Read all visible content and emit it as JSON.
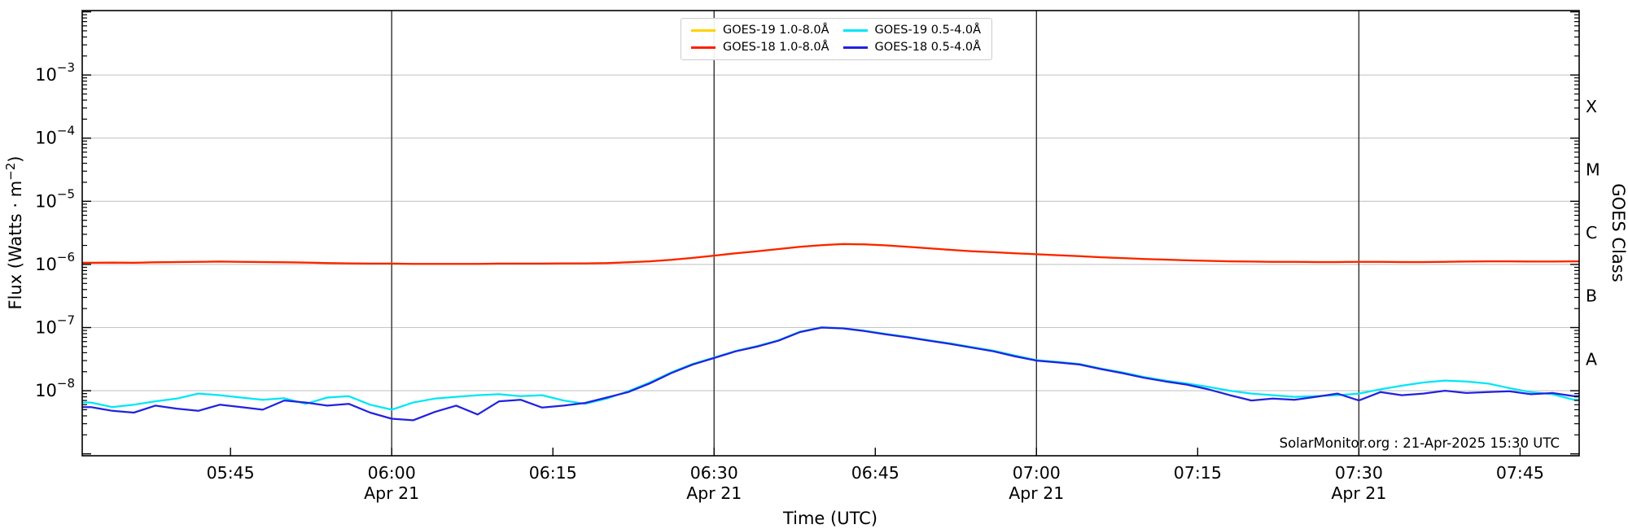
{
  "page": {
    "background": "#ffffff"
  },
  "axes": {
    "xlabel": "Time (UTC)",
    "ylabel_left_pre": "Flux (Watts · m",
    "ylabel_left_sup": "−2",
    "ylabel_left_post": ")",
    "ylabel_right": "GOES Class"
  },
  "annotation": {
    "text": "SolarMonitor.org : 21-Apr-2025 15:30 UTC"
  },
  "legend": {
    "items": [
      {
        "id": "goes19-long",
        "label": "GOES-19 1.0-8.0Å",
        "color": "#ffd200"
      },
      {
        "id": "goes18-long",
        "label": "GOES-18 1.0-8.0Å",
        "color": "#ff2000"
      },
      {
        "id": "goes19-short",
        "label": "GOES-19 0.5-4.0Å",
        "color": "#00e6f6"
      },
      {
        "id": "goes18-short",
        "label": "GOES-18 0.5-4.0Å",
        "color": "#2222e0"
      }
    ]
  },
  "chart_data": {
    "type": "line",
    "xlabel": "Time (UTC)",
    "ylabel": "Flux (Watts · m−2)",
    "ylabel_right": "GOES Class",
    "x_unit": "minutes after 05:30 UTC, 21-Apr-2025",
    "x_min": 1.2,
    "x_max": 140.5,
    "y_log_min": -9.03,
    "y_log_max": -1.98,
    "y_tick_exps": [
      -3,
      -4,
      -5,
      -6,
      -7,
      -8
    ],
    "grid_on": true,
    "x_ticks": [
      {
        "minutes": 15,
        "label": "05:45"
      },
      {
        "minutes": 30,
        "label": "06:00",
        "date": "Apr 21",
        "line": true
      },
      {
        "minutes": 45,
        "label": "06:15"
      },
      {
        "minutes": 60,
        "label": "06:30",
        "date": "Apr 21",
        "line": true
      },
      {
        "minutes": 75,
        "label": "06:45"
      },
      {
        "minutes": 90,
        "label": "07:00",
        "date": "Apr 21",
        "line": true
      },
      {
        "minutes": 105,
        "label": "07:15"
      },
      {
        "minutes": 120,
        "label": "07:30",
        "date": "Apr 21",
        "line": true
      },
      {
        "minutes": 135,
        "label": "07:45"
      }
    ],
    "goes_classes": [
      {
        "label": "X",
        "center_exp": -3.5
      },
      {
        "label": "M",
        "center_exp": -4.5
      },
      {
        "label": "C",
        "center_exp": -5.5
      },
      {
        "label": "B",
        "center_exp": -6.5
      },
      {
        "label": "A",
        "center_exp": -7.5
      }
    ],
    "sample_start_minute": 2,
    "sample_step_minutes": 2,
    "series": [
      {
        "id": "goes19-long",
        "name": "GOES-19 1.0-8.0Å",
        "color": "#ffd200",
        "flux_scale": 1e-06,
        "values": [
          1.06,
          1.07,
          1.06,
          1.08,
          1.09,
          1.1,
          1.11,
          1.1,
          1.09,
          1.08,
          1.07,
          1.05,
          1.04,
          1.03,
          1.03,
          1.02,
          1.02,
          1.02,
          1.02,
          1.03,
          1.03,
          1.03,
          1.04,
          1.04,
          1.05,
          1.08,
          1.12,
          1.18,
          1.27,
          1.38,
          1.5,
          1.62,
          1.75,
          1.9,
          2.02,
          2.1,
          2.08,
          2.0,
          1.9,
          1.8,
          1.7,
          1.62,
          1.56,
          1.5,
          1.45,
          1.4,
          1.35,
          1.3,
          1.26,
          1.22,
          1.19,
          1.16,
          1.14,
          1.12,
          1.11,
          1.1,
          1.1,
          1.09,
          1.09,
          1.1,
          1.1,
          1.09,
          1.09,
          1.1,
          1.11,
          1.12,
          1.12,
          1.11,
          1.11,
          1.12
        ]
      },
      {
        "id": "goes18-long",
        "name": "GOES-18 1.0-8.0Å",
        "color": "#ff2000",
        "flux_scale": 1e-06,
        "values": [
          1.06,
          1.07,
          1.06,
          1.08,
          1.09,
          1.1,
          1.11,
          1.1,
          1.09,
          1.08,
          1.07,
          1.05,
          1.04,
          1.03,
          1.03,
          1.02,
          1.02,
          1.02,
          1.02,
          1.03,
          1.03,
          1.03,
          1.04,
          1.04,
          1.05,
          1.08,
          1.12,
          1.18,
          1.27,
          1.38,
          1.5,
          1.62,
          1.75,
          1.9,
          2.02,
          2.1,
          2.08,
          2.0,
          1.9,
          1.8,
          1.7,
          1.62,
          1.56,
          1.5,
          1.45,
          1.4,
          1.35,
          1.3,
          1.26,
          1.22,
          1.19,
          1.16,
          1.14,
          1.12,
          1.11,
          1.1,
          1.1,
          1.09,
          1.09,
          1.1,
          1.1,
          1.09,
          1.09,
          1.1,
          1.11,
          1.12,
          1.12,
          1.11,
          1.11,
          1.12
        ]
      },
      {
        "id": "goes19-short",
        "name": "GOES-19 0.5-4.0Å",
        "color": "#00e6f6",
        "flux_scale": 1e-09,
        "values": [
          6.5,
          5.5,
          6.0,
          6.8,
          7.5,
          9.0,
          8.5,
          7.8,
          7.2,
          7.6,
          6.2,
          7.8,
          8.2,
          6.0,
          5.0,
          6.5,
          7.5,
          8.0,
          8.5,
          8.8,
          8.2,
          8.5,
          7.0,
          6.2,
          7.5,
          9.8,
          13.5,
          19.5,
          26.5,
          33.5,
          42.5,
          51,
          63,
          86,
          101,
          98,
          89,
          79,
          71,
          63,
          56,
          49,
          43,
          36,
          30.5,
          28.5,
          26.5,
          22.5,
          19.5,
          16.5,
          14.5,
          13.0,
          11.5,
          10.0,
          9.0,
          8.5,
          8.0,
          8.2,
          8.5,
          9.0,
          10.5,
          12.0,
          13.5,
          14.5,
          14.0,
          13.0,
          11.0,
          9.5,
          8.8,
          7.2
        ]
      },
      {
        "id": "goes18-short",
        "name": "GOES-18 0.5-4.0Å",
        "color": "#2222e0",
        "flux_scale": 1e-09,
        "values": [
          5.5,
          4.8,
          4.5,
          5.8,
          5.2,
          4.8,
          6.0,
          5.5,
          5.0,
          7.0,
          6.5,
          5.8,
          6.2,
          4.5,
          3.6,
          3.4,
          4.6,
          5.8,
          4.2,
          6.8,
          7.2,
          5.4,
          5.8,
          6.4,
          7.8,
          9.5,
          13,
          19,
          26,
          33,
          42,
          50,
          62,
          85,
          100,
          97,
          88,
          78,
          70,
          62,
          55,
          48,
          42,
          35,
          30,
          28,
          26,
          22,
          19,
          16,
          14,
          12.5,
          10.5,
          8.5,
          7.0,
          7.5,
          7.2,
          8.0,
          9.0,
          7.0,
          9.5,
          8.5,
          9.0,
          10.0,
          9.2,
          9.5,
          9.8,
          8.8,
          9.2,
          8.2
        ]
      }
    ]
  }
}
